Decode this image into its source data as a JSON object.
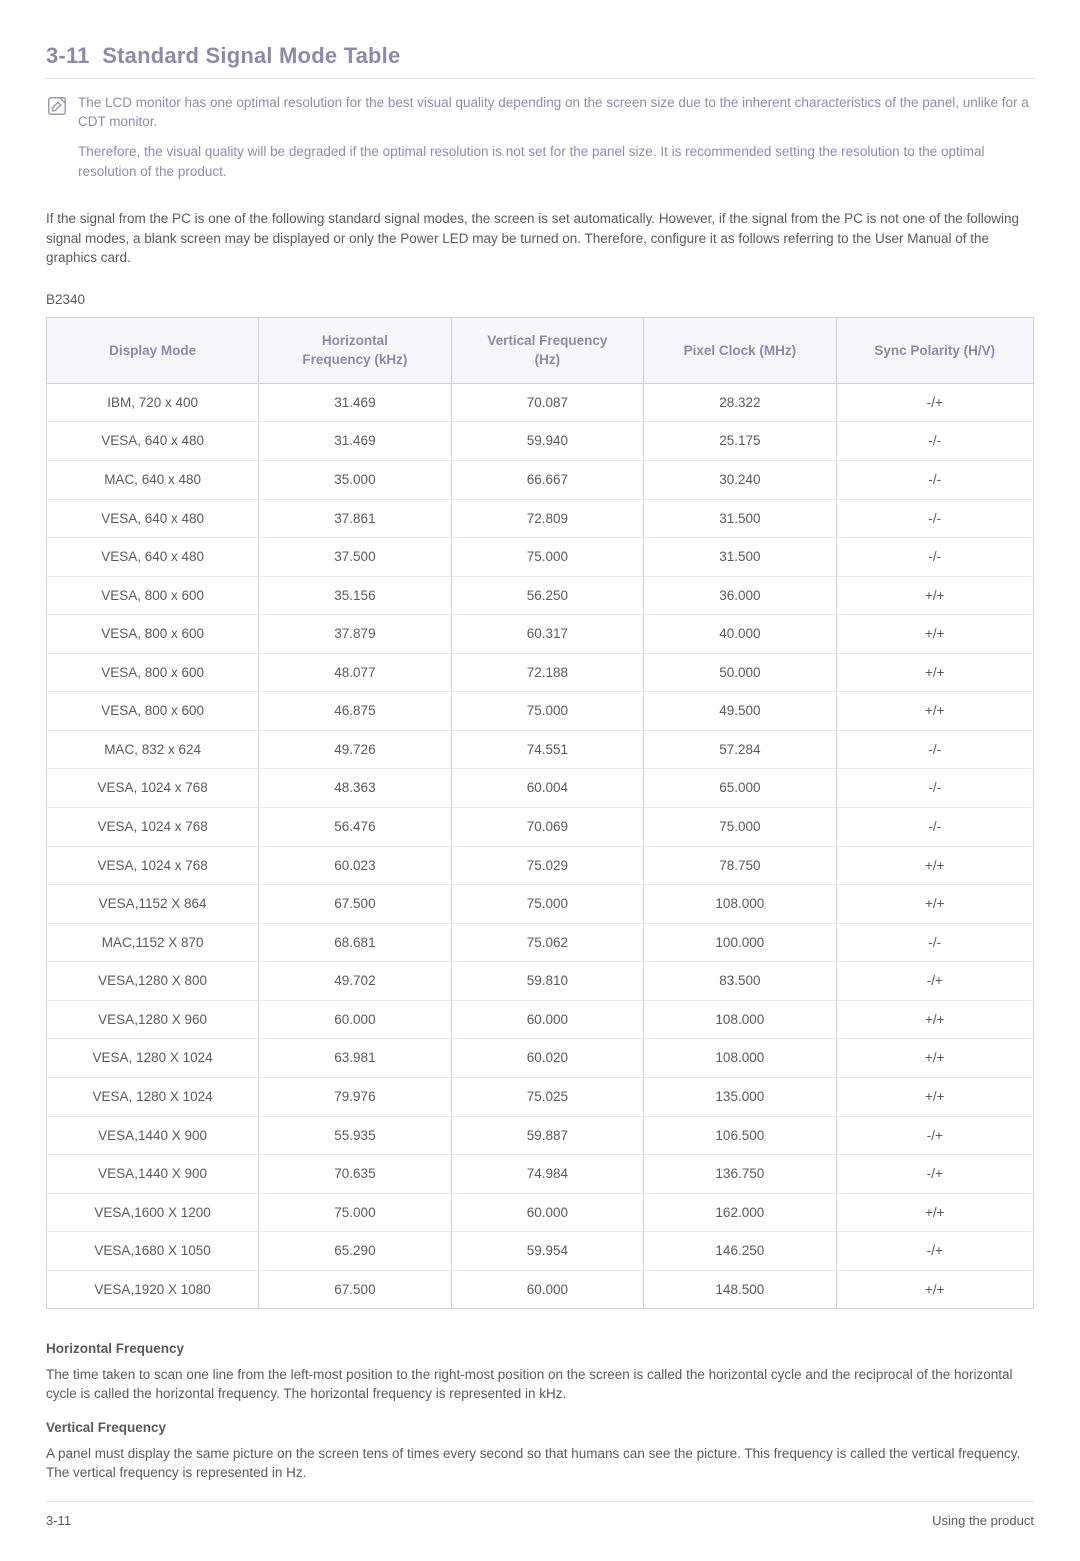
{
  "section": {
    "number": "3-11",
    "title": "Standard Signal Mode Table"
  },
  "note": {
    "p1": "The LCD monitor has one optimal resolution for the best visual quality depending on the screen size due to the inherent characteristics of the panel, unlike for a CDT monitor.",
    "p2": "Therefore, the visual quality will be degraded if the optimal resolution is not set for the panel size. It is recommended setting the resolution to the optimal resolution of the product."
  },
  "intro": "If the signal from the PC is one of the following standard signal modes, the screen is set automatically. However, if the signal from the PC is not one of the following signal modes, a blank screen may be displayed or only the Power LED may be turned on. Therefore, configure it as follows referring to the User Manual of the graphics card.",
  "model": "B2340",
  "table": {
    "columns": [
      "Display Mode",
      "Horizontal Frequency (kHz)",
      "Vertical Frequency (Hz)",
      "Pixel Clock (MHz)",
      "Sync Polarity (H/V)"
    ],
    "rows": [
      [
        "IBM, 720 x 400",
        "31.469",
        "70.087",
        "28.322",
        "-/+"
      ],
      [
        "VESA, 640 x 480",
        "31.469",
        "59.940",
        "25.175",
        "-/-"
      ],
      [
        "MAC, 640 x 480",
        "35.000",
        "66.667",
        "30.240",
        "-/-"
      ],
      [
        "VESA, 640 x 480",
        "37.861",
        "72.809",
        "31.500",
        "-/-"
      ],
      [
        "VESA, 640 x 480",
        "37.500",
        "75.000",
        "31.500",
        "-/-"
      ],
      [
        "VESA, 800 x 600",
        "35.156",
        "56.250",
        "36.000",
        "+/+"
      ],
      [
        "VESA, 800 x 600",
        "37.879",
        "60.317",
        "40.000",
        "+/+"
      ],
      [
        "VESA, 800 x 600",
        "48.077",
        "72.188",
        "50.000",
        "+/+"
      ],
      [
        "VESA, 800 x 600",
        "46.875",
        "75.000",
        "49.500",
        "+/+"
      ],
      [
        "MAC, 832 x 624",
        "49.726",
        "74.551",
        "57.284",
        "-/-"
      ],
      [
        "VESA, 1024 x 768",
        "48.363",
        "60.004",
        "65.000",
        "-/-"
      ],
      [
        "VESA, 1024 x 768",
        "56.476",
        "70.069",
        "75.000",
        "-/-"
      ],
      [
        "VESA, 1024 x 768",
        "60.023",
        "75.029",
        "78.750",
        "+/+"
      ],
      [
        "VESA,1152 X 864",
        "67.500",
        "75.000",
        "108.000",
        "+/+"
      ],
      [
        "MAC,1152 X 870",
        "68.681",
        "75.062",
        "100.000",
        "-/-"
      ],
      [
        "VESA,1280 X 800",
        "49.702",
        "59.810",
        "83.500",
        "-/+"
      ],
      [
        "VESA,1280 X 960",
        "60.000",
        "60.000",
        "108.000",
        "+/+"
      ],
      [
        "VESA, 1280 X 1024",
        "63.981",
        "60.020",
        "108.000",
        "+/+"
      ],
      [
        "VESA, 1280 X 1024",
        "79.976",
        "75.025",
        "135.000",
        "+/+"
      ],
      [
        "VESA,1440 X 900",
        "55.935",
        "59.887",
        "106.500",
        "-/+"
      ],
      [
        "VESA,1440 X 900",
        "70.635",
        "74.984",
        "136.750",
        "-/+"
      ],
      [
        "VESA,1600 X 1200",
        "75.000",
        "60.000",
        "162.000",
        "+/+"
      ],
      [
        "VESA,1680 X 1050",
        "65.290",
        "59.954",
        "146.250",
        "-/+"
      ],
      [
        "VESA,1920 X 1080",
        "67.500",
        "60.000",
        "148.500",
        "+/+"
      ]
    ],
    "header_bg": "#f6f6fa",
    "header_color": "#8b8ba8",
    "border_color": "#d0d0dc",
    "row_divider_color": "#e6e6ee",
    "cell_color": "#5a5a5a",
    "column_widths_pct": [
      21.5,
      19.5,
      19.5,
      19.5,
      20
    ]
  },
  "definitions": {
    "hf_title": "Horizontal Frequency",
    "hf_text": "The time taken to scan one line from the left-most position to the right-most position on the screen is called the horizontal cycle and the reciprocal of the horizontal cycle is called the horizontal frequency. The horizontal frequency is represented in kHz.",
    "vf_title": "Vertical Frequency",
    "vf_text": "A panel must display the same picture on the screen tens of times every second so that humans can see the picture. This frequency is called the vertical frequency. The vertical frequency is represented in Hz."
  },
  "footer": {
    "left": "3-11",
    "right": "Using the product"
  },
  "colors": {
    "heading": "#8b8ba8",
    "note_text": "#8c8ca8",
    "body_text": "#5a5a5a",
    "rule": "#d8d8e0"
  }
}
